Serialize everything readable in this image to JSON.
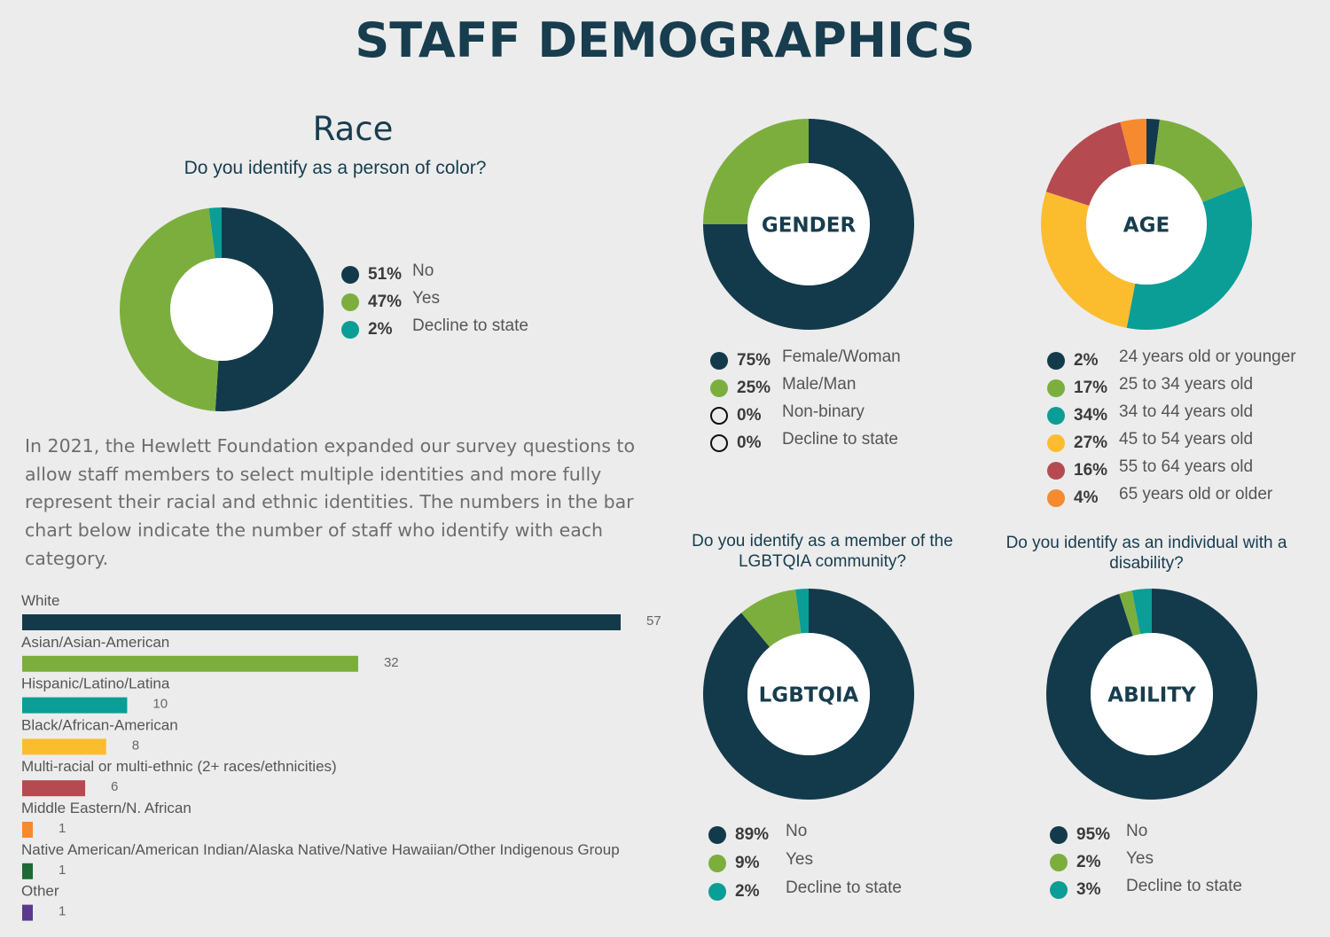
{
  "title": "STAFF DEMOGRAPHICS",
  "race": {
    "heading": "Race",
    "question": "Do you identify as a person of color?",
    "paragraph": "In 2021, the Hewlett Foundation expanded our survey questions to allow staff members to select multiple identities and more fully represent their racial and ethnic identities. The numbers in the bar chart below indicate the number of staff who identify with each category."
  },
  "lgbtqia_question": "Do you identify as a member of the LGBTQIA community?",
  "ability_question": "Do you identify as an individual with a disability?",
  "chart_data": [
    {
      "type": "pie",
      "id": "poc",
      "center_label": "",
      "slices": [
        {
          "label": "No",
          "pct_text": "51%",
          "value": 51,
          "color": "#133a4b"
        },
        {
          "label": "Yes",
          "pct_text": "47%",
          "value": 47,
          "color": "#7cae3e"
        },
        {
          "label": "Decline to state",
          "pct_text": "2%",
          "value": 2,
          "color": "#0a9e96"
        }
      ]
    },
    {
      "type": "pie",
      "id": "gender",
      "center_label": "GENDER",
      "slices": [
        {
          "label": "Female/Woman",
          "pct_text": "75%",
          "value": 75,
          "color": "#133a4b"
        },
        {
          "label": "Male/Man",
          "pct_text": "25%",
          "value": 25,
          "color": "#7cae3e"
        },
        {
          "label": "Non-binary",
          "pct_text": "0%",
          "value": 0,
          "color": "hollow"
        },
        {
          "label": "Decline to state",
          "pct_text": "0%",
          "value": 0,
          "color": "hollow"
        }
      ]
    },
    {
      "type": "pie",
      "id": "age",
      "center_label": "AGE",
      "slices": [
        {
          "label": "24 years old or younger",
          "pct_text": "2%",
          "value": 2,
          "color": "#133a4b"
        },
        {
          "label": "25 to 34 years old",
          "pct_text": "17%",
          "value": 17,
          "color": "#7cae3e"
        },
        {
          "label": "34 to 44 years old",
          "pct_text": "34%",
          "value": 34,
          "color": "#0a9e96"
        },
        {
          "label": "45 to 54 years old",
          "pct_text": "27%",
          "value": 27,
          "color": "#fbbd2e"
        },
        {
          "label": "55 to 64 years old",
          "pct_text": "16%",
          "value": 16,
          "color": "#b54a51"
        },
        {
          "label": "65 years old or older",
          "pct_text": "4%",
          "value": 4,
          "color": "#f58a2e"
        }
      ]
    },
    {
      "type": "pie",
      "id": "lgbtqia",
      "center_label": "LGBTQIA",
      "slices": [
        {
          "label": "No",
          "pct_text": "89%",
          "value": 89,
          "color": "#133a4b"
        },
        {
          "label": "Yes",
          "pct_text": "9%",
          "value": 9,
          "color": "#7cae3e"
        },
        {
          "label": "Decline to state",
          "pct_text": "2%",
          "value": 2,
          "color": "#0a9e96"
        }
      ]
    },
    {
      "type": "pie",
      "id": "ability",
      "center_label": "ABILITY",
      "slices": [
        {
          "label": "No",
          "pct_text": "95%",
          "value": 95,
          "color": "#133a4b"
        },
        {
          "label": "Yes",
          "pct_text": "2%",
          "value": 2,
          "color": "#7cae3e"
        },
        {
          "label": "Decline to state",
          "pct_text": "3%",
          "value": 3,
          "color": "#0a9e96"
        }
      ]
    },
    {
      "type": "bar",
      "id": "race-bars",
      "orientation": "horizontal",
      "categories": [
        "White",
        "Asian/Asian-American",
        "Hispanic/Latino/Latina",
        "Black/African-American",
        "Multi-racial or multi-ethnic (2+ races/ethnicities)",
        "Middle Eastern/N. African",
        "Native American/American Indian/Alaska Native/Native Hawaiian/Other Indigenous Group",
        "Other"
      ],
      "values": [
        57,
        32,
        10,
        8,
        6,
        1,
        1,
        1
      ],
      "colors": [
        "#133a4b",
        "#7cae3e",
        "#0a9e96",
        "#fbbd2e",
        "#b54a51",
        "#f58a2e",
        "#1c6b33",
        "#5a3a8c"
      ]
    }
  ]
}
